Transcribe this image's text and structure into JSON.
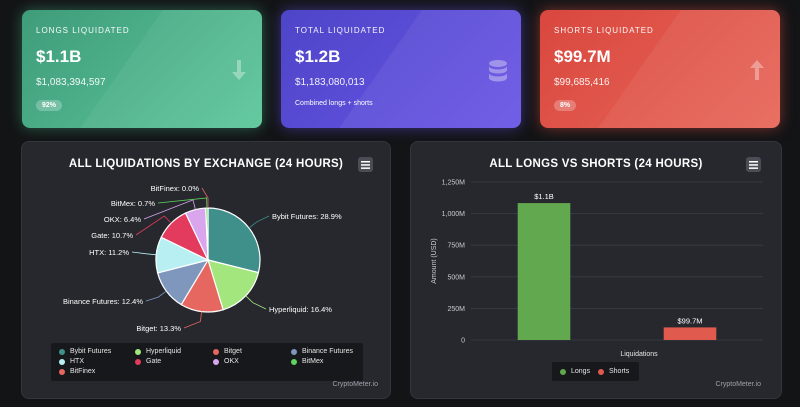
{
  "cards": {
    "longs": {
      "title": "LONGS LIQUIDATED",
      "value": "$1.1B",
      "exact": "$1,083,394,597",
      "badge": "92%",
      "icon": "arrow-down-icon",
      "color": "#4fb58a"
    },
    "total": {
      "title": "TOTAL LIQUIDATED",
      "value": "$1.2B",
      "exact": "$1,183,080,013",
      "note": "Combined longs + shorts",
      "icon": "database-icon",
      "color": "#5a4fd8"
    },
    "shorts": {
      "title": "SHORTS LIQUIDATED",
      "value": "$99.7M",
      "exact": "$99,685,416",
      "badge": "8%",
      "icon": "arrow-up-icon",
      "color": "#e05a4e"
    }
  },
  "exchange_panel": {
    "title": "ALL LIQUIDATIONS BY EXCHANGE (24 HOURS)",
    "credit": "CryptoMeter.io"
  },
  "bar_panel": {
    "title": "ALL LONGS VS SHORTS (24 HOURS)",
    "credit": "CryptoMeter.io"
  },
  "chart_data": [
    {
      "type": "pie",
      "title": "ALL LIQUIDATIONS BY EXCHANGE (24 HOURS)",
      "slices": [
        {
          "name": "Bybit Futures",
          "value": 28.9,
          "label": "Bybit Futures: 28.9%",
          "color": "#3f8f8b"
        },
        {
          "name": "Hyperliquid",
          "value": 16.4,
          "label": "Hyperliquid: 16.4%",
          "color": "#a3e67d"
        },
        {
          "name": "Bitget",
          "value": 13.3,
          "label": "Bitget: 13.3%",
          "color": "#e5675f"
        },
        {
          "name": "Binance Futures",
          "value": 12.4,
          "label": "Binance Futures: 12.4%",
          "color": "#7f96bd"
        },
        {
          "name": "HTX",
          "value": 11.2,
          "label": "HTX: 11.2%",
          "color": "#b8eff3"
        },
        {
          "name": "Gate",
          "value": 10.7,
          "label": "Gate: 10.7%",
          "color": "#e23b5d"
        },
        {
          "name": "OKX",
          "value": 6.4,
          "label": "OKX: 6.4%",
          "color": "#d9a6ee"
        },
        {
          "name": "BitMex",
          "value": 0.7,
          "label": "BitMex: 0.7%",
          "color": "#5fd35e"
        },
        {
          "name": "BitFinex",
          "value": 0.0,
          "label": "BitFinex: 0.0%",
          "color": "#e5675f"
        }
      ],
      "legend": [
        "Bybit Futures",
        "Hyperliquid",
        "Bitget",
        "Binance Futures",
        "HTX",
        "Gate",
        "OKX",
        "BitMex",
        "BitFinex"
      ]
    },
    {
      "type": "bar",
      "title": "ALL LONGS VS SHORTS (24 HOURS)",
      "categories": [
        "Longs",
        "Shorts"
      ],
      "values": [
        1083.394597,
        99.685416
      ],
      "data_labels": [
        "$1.1B",
        "$99.7M"
      ],
      "colors": [
        "#62a84f",
        "#e05a4e"
      ],
      "xlabel": "Liquidations",
      "ylabel": "Amount (USD)",
      "ylim": [
        0,
        1250
      ],
      "yticks": [
        "0",
        "250M",
        "500M",
        "750M",
        "1,000M",
        "1,250M"
      ],
      "legend": [
        "Longs",
        "Shorts"
      ]
    }
  ]
}
